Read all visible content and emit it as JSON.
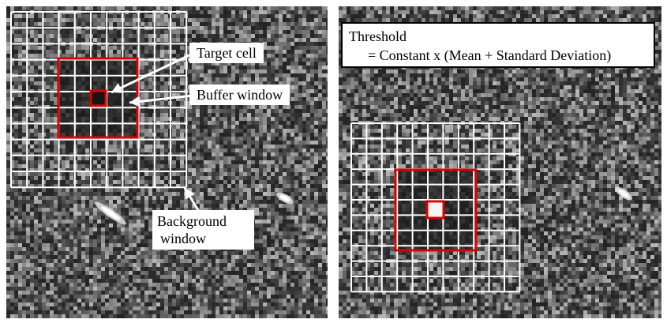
{
  "colors": {
    "grid_line": "#ffffff",
    "highlight": "#e00000",
    "sar_background": "#4a4a4a",
    "label_bg": "#ffffff",
    "text": "#000000"
  },
  "left_panel": {
    "labels": {
      "target_cell": "Target cell",
      "buffer_window": "Buffer window",
      "background_window_line1": "Background",
      "background_window_line2": "window"
    }
  },
  "right_panel": {
    "formula": {
      "line1": "Threshold",
      "line2": "= Constant x (Mean + Standard Deviation)"
    }
  }
}
